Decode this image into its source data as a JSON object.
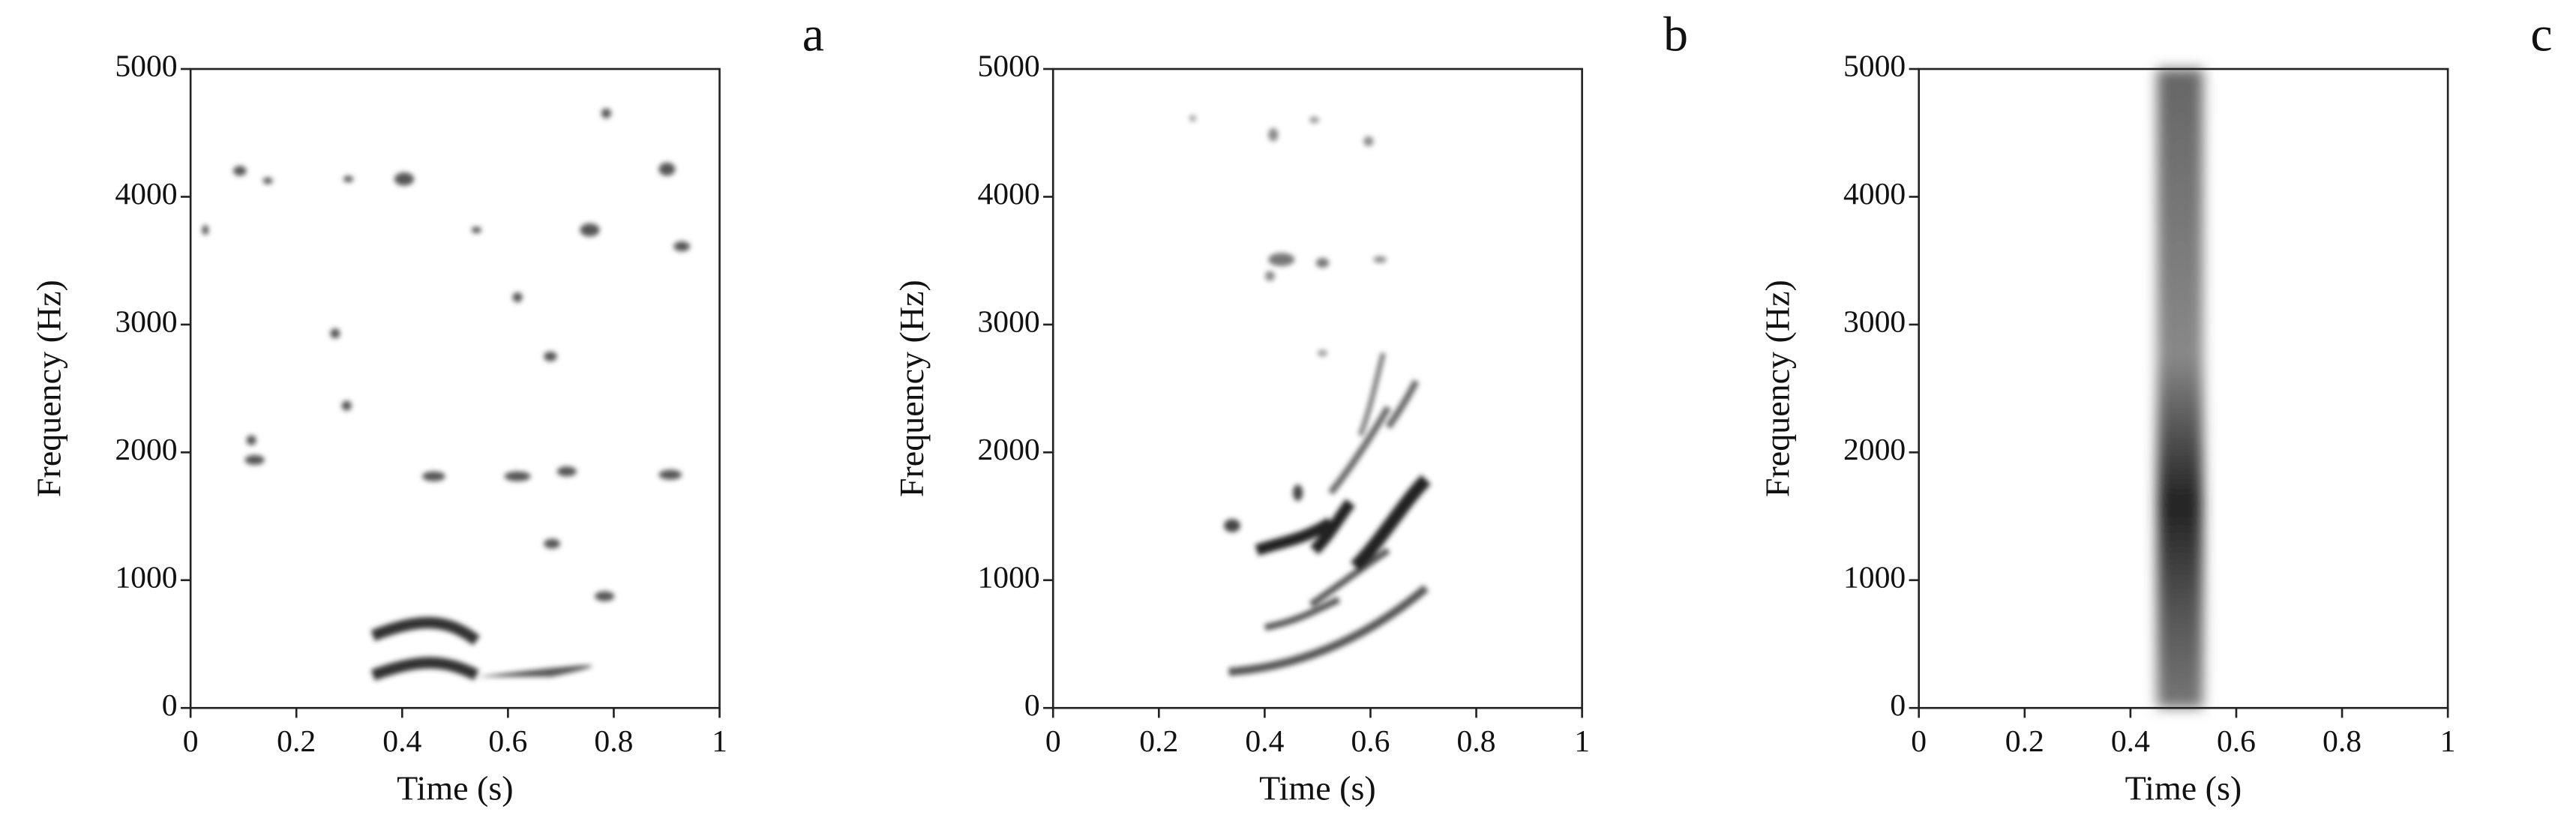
{
  "chart_data": [
    {
      "type": "spectrogram",
      "panel_label": "a",
      "xlabel": "Time (s)",
      "ylabel": "Frequency (Hz)",
      "xlim": [
        0,
        1
      ],
      "ylim": [
        0,
        5000
      ],
      "xticks": [
        0,
        0.2,
        0.4,
        0.6,
        0.8,
        1
      ],
      "yticks": [
        0,
        1000,
        2000,
        3000,
        4000,
        5000
      ]
    },
    {
      "type": "spectrogram",
      "panel_label": "b",
      "xlabel": "Time (s)",
      "ylabel": "Frequency (Hz)",
      "xlim": [
        0,
        1
      ],
      "ylim": [
        0,
        5000
      ],
      "xticks": [
        0,
        0.2,
        0.4,
        0.6,
        0.8,
        1
      ],
      "yticks": [
        0,
        1000,
        2000,
        3000,
        4000,
        5000
      ]
    },
    {
      "type": "spectrogram",
      "panel_label": "c",
      "xlabel": "Time (s)",
      "ylabel": "Frequency (Hz)",
      "xlim": [
        0,
        1
      ],
      "ylim": [
        0,
        5000
      ],
      "xticks": [
        0,
        0.2,
        0.4,
        0.6,
        0.8,
        1
      ],
      "yticks": [
        0,
        1000,
        2000,
        3000,
        4000,
        5000
      ]
    }
  ]
}
